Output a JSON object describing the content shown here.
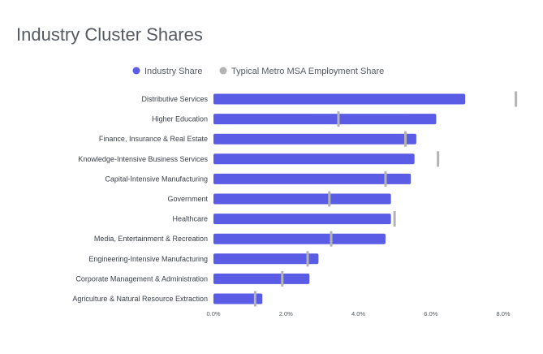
{
  "chart_data": {
    "type": "bar",
    "orientation": "horizontal",
    "title": "Industry Cluster Shares",
    "categories": [
      "Distributive Services",
      "Higher Education",
      "Finance, Insurance & Real Estate",
      "Knowledge-Intensive Business Services",
      "Capital-Intensive Manufacturing",
      "Government",
      "Healthcare",
      "Media, Entertainment & Recreation",
      "Engineering-Intensive Manufacturing",
      "Corporate Management & Administration",
      "Agriculture & Natural Resource Extraction"
    ],
    "series": [
      {
        "name": "Industry Share",
        "color": "#5b5ce6",
        "values": [
          6.95,
          6.15,
          5.6,
          5.55,
          5.45,
          4.9,
          4.9,
          4.75,
          2.9,
          2.65,
          1.35
        ]
      },
      {
        "name": "Typical Metro MSA Employment Share",
        "color": "#b3b3b3",
        "marker": "tick",
        "values": [
          8.35,
          3.45,
          5.3,
          6.2,
          4.75,
          3.2,
          5.0,
          3.25,
          2.6,
          1.9,
          1.15
        ]
      }
    ],
    "xlim": [
      0,
      8
    ],
    "x_ticks": [
      "0.0%",
      "2.0%",
      "4.0%",
      "6.0%",
      "8.0%"
    ],
    "x_tick_values": [
      0,
      2,
      4,
      6,
      8
    ],
    "legend_position": "top-center",
    "grid": false
  }
}
